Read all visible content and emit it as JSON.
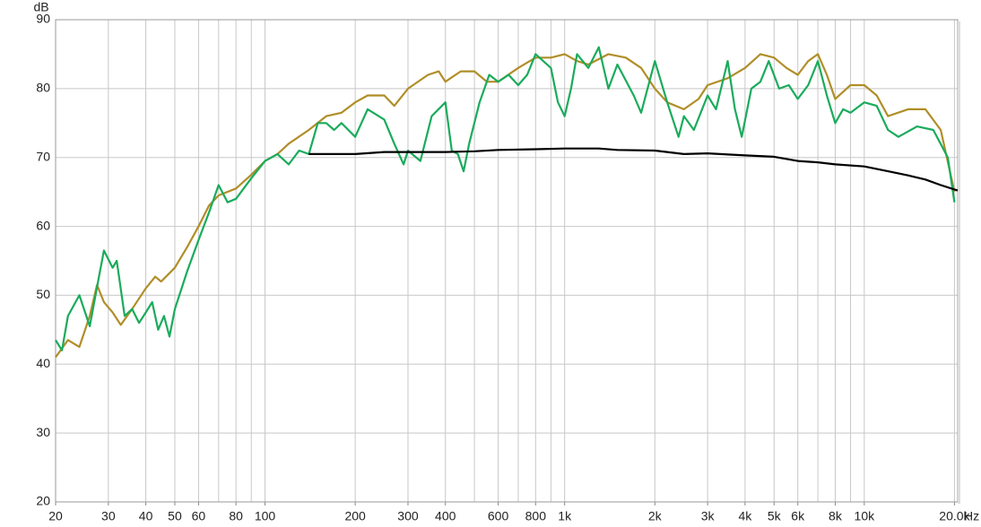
{
  "chart_data": {
    "type": "line",
    "y_unit": "dB",
    "x_unit": "Hz",
    "log_x": true,
    "grid": true,
    "xlim": [
      20,
      20500
    ],
    "ylim": [
      20,
      90
    ],
    "yticks": [
      20,
      30,
      40,
      50,
      60,
      70,
      80,
      90
    ],
    "xticks": [
      20,
      30,
      40,
      50,
      60,
      80,
      100,
      200,
      300,
      400,
      600,
      800,
      {
        "value": 1000,
        "label": "1k"
      },
      {
        "value": 2000,
        "label": "2k"
      },
      {
        "value": 3000,
        "label": "3k"
      },
      {
        "value": 4000,
        "label": "4k"
      },
      {
        "value": 5000,
        "label": "5k"
      },
      {
        "value": 6000,
        "label": "6k"
      },
      {
        "value": 8000,
        "label": "8k"
      },
      {
        "value": 10000,
        "label": "10k"
      },
      {
        "value": 20000,
        "label": "20.0k"
      }
    ],
    "xgrid": [
      20,
      30,
      40,
      50,
      60,
      70,
      80,
      90,
      100,
      200,
      300,
      400,
      500,
      600,
      700,
      800,
      900,
      1000,
      2000,
      3000,
      4000,
      5000,
      6000,
      7000,
      8000,
      9000,
      10000,
      20000
    ],
    "series": [
      {
        "color": "#b08e28",
        "x": [
          20,
          22,
          24,
          26,
          27.5,
          29,
          31,
          33,
          36,
          40,
          43,
          45,
          50,
          55,
          60,
          65,
          70,
          80,
          90,
          100,
          110,
          120,
          140,
          160,
          180,
          200,
          220,
          250,
          270,
          300,
          350,
          380,
          400,
          450,
          500,
          550,
          600,
          700,
          800,
          900,
          1000,
          1100,
          1200,
          1400,
          1600,
          1800,
          2000,
          2200,
          2500,
          2800,
          3000,
          3500,
          4000,
          4500,
          5000,
          5500,
          6000,
          6500,
          7000,
          7500,
          8000,
          9000,
          10000,
          11000,
          12000,
          14000,
          16000,
          18000,
          20000
        ],
        "values": [
          41,
          43.5,
          42.5,
          47,
          51.5,
          49,
          47.5,
          45.7,
          48,
          51,
          52.7,
          52,
          54,
          57,
          60,
          63,
          64.5,
          65.5,
          67.5,
          69.5,
          70.5,
          72,
          74,
          76,
          76.5,
          78,
          79,
          79,
          77.5,
          80,
          82,
          82.5,
          81,
          82.5,
          82.5,
          81,
          81,
          83,
          84.5,
          84.5,
          85,
          84,
          83.5,
          85,
          84.5,
          83,
          80,
          78,
          77,
          78.5,
          80.5,
          81.5,
          83,
          85,
          84.5,
          83,
          82,
          84,
          85,
          82,
          78.5,
          80.5,
          80.5,
          79,
          76,
          77,
          77,
          74,
          65
        ]
      },
      {
        "color": "#1aab5c",
        "x": [
          20,
          21,
          22,
          24,
          26,
          28,
          29,
          31,
          32,
          34,
          36,
          38,
          40,
          42,
          44,
          46,
          48,
          50,
          55,
          60,
          65,
          70,
          75,
          80,
          90,
          100,
          110,
          120,
          130,
          140,
          150,
          160,
          170,
          180,
          200,
          220,
          250,
          270,
          290,
          300,
          330,
          360,
          400,
          420,
          440,
          460,
          480,
          520,
          560,
          600,
          650,
          700,
          750,
          800,
          900,
          950,
          1000,
          1050,
          1100,
          1200,
          1300,
          1400,
          1500,
          1700,
          1800,
          2000,
          2200,
          2400,
          2500,
          2700,
          3000,
          3200,
          3500,
          3700,
          3900,
          4200,
          4500,
          4800,
          5200,
          5600,
          6000,
          6500,
          7000,
          7500,
          8000,
          8500,
          9000,
          10000,
          11000,
          12000,
          13000,
          15000,
          17000,
          19000,
          20000
        ],
        "values": [
          43.5,
          42,
          47,
          50,
          45.5,
          53,
          56.5,
          54,
          55,
          47,
          48,
          46,
          47.5,
          49,
          45,
          47,
          44,
          48,
          53.5,
          58,
          62,
          66,
          63.5,
          64,
          67,
          69.5,
          70.5,
          69,
          71,
          70.5,
          75,
          75,
          74,
          75,
          73,
          77,
          75.5,
          72,
          69,
          71,
          69.5,
          76,
          78,
          71,
          70.5,
          68,
          72,
          78,
          82,
          81,
          82,
          80.5,
          82,
          85,
          83,
          78,
          76,
          80,
          85,
          83,
          86,
          80,
          83.5,
          79,
          76.5,
          84,
          78,
          73,
          76,
          74,
          79,
          77,
          84,
          77,
          73,
          80,
          81,
          84,
          80,
          80.5,
          78.5,
          80.5,
          84,
          79,
          75,
          77,
          76.5,
          78,
          77.5,
          74,
          73,
          74.5,
          74,
          70,
          63.5
        ]
      },
      {
        "color": "#000000",
        "x": [
          140,
          200,
          250,
          400,
          500,
          600,
          800,
          1000,
          1300,
          1500,
          2000,
          2500,
          3000,
          4000,
          5000,
          6000,
          7000,
          8000,
          10000,
          12000,
          14000,
          16000,
          18000,
          20500
        ],
        "values": [
          70.5,
          70.5,
          70.8,
          70.8,
          70.9,
          71.1,
          71.2,
          71.3,
          71.3,
          71.1,
          71,
          70.5,
          70.6,
          70.3,
          70.1,
          69.5,
          69.3,
          69,
          68.7,
          68,
          67.4,
          66.8,
          66,
          65.2
        ]
      }
    ]
  }
}
